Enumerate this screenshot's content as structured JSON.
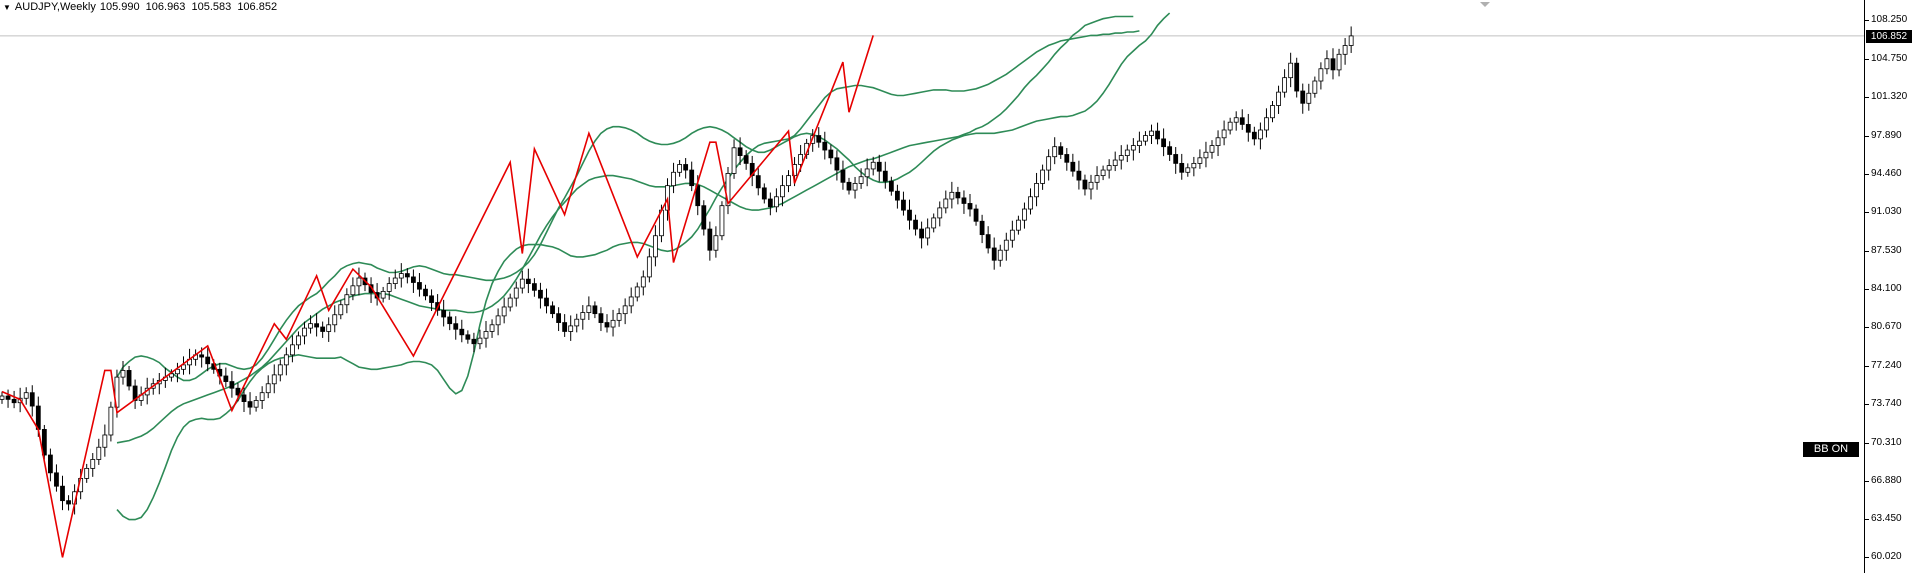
{
  "header": {
    "symbol": "AUDJPY,Weekly",
    "open": "105.990",
    "high": "106.963",
    "low": "105.583",
    "close": "106.852"
  },
  "current_price_label": "106.852",
  "indicator_badge": "BB ON",
  "chart_data": {
    "type": "candlestick",
    "title": "AUDJPY,Weekly",
    "ylim": [
      59.5,
      109.0
    ],
    "y_ticks": [
      "108.250",
      "104.750",
      "101.320",
      "97.890",
      "94.460",
      "91.030",
      "87.530",
      "84.100",
      "80.670",
      "77.240",
      "73.740",
      "70.310",
      "66.880",
      "63.450",
      "60.020"
    ],
    "last_price": 106.852,
    "grid": false,
    "colors": {
      "bull_candle": "#ffffff",
      "bear_candle": "#000000",
      "bollinger": "#2e8b57",
      "zigzag": "#e60000",
      "price_line": "#c0c0c0"
    },
    "close_series": [
      74.5,
      74.2,
      73.9,
      74.3,
      74.8,
      73.6,
      71.5,
      69.2,
      67.6,
      66.4,
      65.1,
      64.8,
      65.9,
      67.1,
      68.0,
      68.8,
      69.9,
      71.0,
      73.5,
      76.2,
      76.8,
      75.4,
      74.1,
      74.6,
      75.2,
      75.6,
      75.9,
      76.2,
      76.5,
      76.9,
      77.3,
      77.8,
      78.2,
      78.0,
      77.4,
      76.9,
      76.3,
      75.8,
      75.2,
      74.6,
      74.0,
      73.5,
      74.1,
      74.8,
      75.6,
      76.4,
      77.3,
      78.2,
      79.1,
      79.9,
      80.6,
      81.0,
      80.7,
      80.3,
      80.9,
      81.8,
      82.7,
      83.6,
      84.4,
      85.1,
      84.5,
      83.8,
      83.3,
      83.9,
      84.6,
      85.1,
      85.5,
      85.2,
      84.7,
      84.1,
      83.5,
      82.9,
      82.2,
      81.6,
      81.0,
      80.5,
      80.0,
      79.6,
      79.2,
      79.7,
      80.3,
      80.9,
      81.7,
      82.5,
      83.3,
      84.2,
      85.0,
      84.6,
      84.0,
      83.3,
      82.6,
      81.9,
      81.1,
      80.3,
      80.8,
      81.4,
      82.0,
      82.6,
      81.9,
      81.1,
      80.7,
      81.3,
      81.9,
      82.6,
      83.4,
      84.3,
      85.2,
      87.0,
      88.9,
      91.2,
      93.4,
      94.6,
      95.3,
      94.8,
      93.4,
      91.6,
      89.5,
      87.6,
      88.9,
      91.6,
      94.5,
      96.8,
      96.1,
      95.4,
      94.3,
      93.2,
      92.2,
      91.5,
      92.4,
      93.4,
      94.3,
      95.3,
      96.2,
      97.2,
      97.9,
      97.3,
      96.6,
      95.9,
      94.8,
      93.7,
      93.0,
      93.6,
      94.2,
      94.9,
      95.5,
      94.7,
      93.8,
      92.9,
      92.1,
      91.2,
      90.3,
      89.5,
      88.7,
      89.6,
      90.5,
      91.4,
      92.2,
      92.8,
      92.3,
      91.8,
      91.3,
      90.2,
      89.0,
      87.8,
      86.7,
      87.6,
      88.5,
      89.4,
      90.3,
      91.3,
      92.4,
      93.6,
      94.8,
      96.0,
      96.9,
      96.2,
      95.5,
      94.7,
      93.9,
      93.1,
      93.7,
      94.3,
      94.8,
      95.2,
      95.7,
      96.1,
      96.6,
      97.0,
      97.4,
      97.9,
      98.3,
      97.6,
      96.9,
      96.2,
      95.4,
      94.6,
      95.0,
      95.4,
      95.9,
      96.4,
      97.0,
      97.7,
      98.4,
      99.1,
      99.5,
      98.9,
      98.2,
      97.6,
      98.4,
      99.5,
      100.6,
      101.8,
      103.1,
      104.4,
      101.9,
      100.8,
      101.7,
      102.8,
      103.9,
      104.8,
      103.8,
      105.2,
      105.99,
      106.852
    ],
    "bollinger_upper": [
      null,
      null,
      null,
      null,
      null,
      null,
      null,
      null,
      null,
      null,
      null,
      null,
      null,
      null,
      null,
      null,
      null,
      null,
      null,
      76.2,
      77.1,
      77.6,
      78.0,
      78.1,
      78.0,
      77.8,
      77.5,
      77.0,
      76.6,
      76.2,
      75.9,
      75.9,
      76.1,
      76.5,
      76.9,
      77.2,
      77.4,
      77.4,
      77.2,
      77.0,
      76.9,
      77.0,
      77.3,
      77.9,
      78.7,
      79.6,
      80.5,
      81.3,
      82.0,
      82.6,
      83.0,
      83.4,
      83.7,
      84.2,
      84.8,
      85.3,
      85.9,
      86.2,
      86.4,
      86.5,
      86.4,
      86.3,
      86.0,
      85.8,
      85.6,
      85.6,
      85.7,
      85.9,
      86.1,
      86.2,
      86.1,
      85.9,
      85.7,
      85.5,
      85.4,
      85.4,
      85.3,
      85.2,
      85.1,
      85.0,
      84.9,
      84.9,
      85.0,
      85.1,
      85.3,
      85.6,
      86.0,
      86.5,
      87.2,
      88.1,
      89.2,
      90.3,
      91.4,
      92.3,
      93.3,
      94.3,
      95.4,
      96.5,
      97.4,
      98.1,
      98.5,
      98.7,
      98.7,
      98.6,
      98.4,
      98.1,
      97.7,
      97.4,
      97.2,
      97.1,
      97.1,
      97.2,
      97.4,
      97.7,
      98.1,
      98.4,
      98.6,
      98.7,
      98.6,
      98.4,
      98.1,
      97.7,
      97.3,
      96.9,
      96.6,
      96.4,
      96.4,
      96.6,
      96.9,
      97.2,
      97.5,
      97.8,
      98.0,
      98.1,
      98.0,
      97.8,
      97.5,
      97.1,
      96.7,
      96.2,
      95.7,
      95.1,
      94.6,
      94.2,
      93.9,
      93.7,
      93.7,
      93.8,
      94.0,
      94.3,
      94.6,
      95.0,
      95.5,
      96.0,
      96.5,
      96.9,
      97.2,
      97.5,
      97.7,
      97.9,
      98.0,
      98.1,
      98.1,
      98.1,
      98.1,
      98.2,
      98.3,
      98.4,
      98.6,
      98.8,
      99.0,
      99.2,
      99.3,
      99.4,
      99.5,
      99.6,
      99.6,
      99.7,
      99.9,
      100.1,
      100.5,
      101.0,
      101.7,
      102.5,
      103.4,
      104.3,
      105.0,
      105.5,
      106.0,
      106.4,
      107.0,
      107.8,
      108.4,
      108.9
    ],
    "bollinger_middle": [
      null,
      null,
      null,
      null,
      null,
      null,
      null,
      null,
      null,
      null,
      null,
      null,
      null,
      null,
      null,
      null,
      null,
      null,
      null,
      70.3,
      70.4,
      70.5,
      70.7,
      70.9,
      71.2,
      71.6,
      72.1,
      72.6,
      73.1,
      73.5,
      73.8,
      74.0,
      74.2,
      74.4,
      74.6,
      74.8,
      75.0,
      75.2,
      75.4,
      75.7,
      76.0,
      76.3,
      76.7,
      77.1,
      77.6,
      78.2,
      78.8,
      79.4,
      80.0,
      80.6,
      81.1,
      81.5,
      81.9,
      82.3,
      82.6,
      82.9,
      83.1,
      83.3,
      83.5,
      83.6,
      83.7,
      83.7,
      83.7,
      83.7,
      83.6,
      83.4,
      83.2,
      83.0,
      82.8,
      82.6,
      82.5,
      82.4,
      82.3,
      82.2,
      82.2,
      82.2,
      82.1,
      82.0,
      82.0,
      82.1,
      82.3,
      82.6,
      83.0,
      83.5,
      84.2,
      85.0,
      85.9,
      86.9,
      87.9,
      88.9,
      89.8,
      90.6,
      91.3,
      91.9,
      92.5,
      93.1,
      93.5,
      93.9,
      94.1,
      94.2,
      94.3,
      94.3,
      94.2,
      94.1,
      94.0,
      93.8,
      93.6,
      93.4,
      93.3,
      93.3,
      93.3,
      93.4,
      93.5,
      93.6,
      93.6,
      93.5,
      93.3,
      93.0,
      92.7,
      92.4,
      92.1,
      91.8,
      91.5,
      91.3,
      91.2,
      91.2,
      91.3,
      91.4,
      91.6,
      91.8,
      92.1,
      92.4,
      92.7,
      93.0,
      93.3,
      93.6,
      93.9,
      94.2,
      94.5,
      94.8,
      95.1,
      95.3,
      95.5,
      95.7,
      95.8,
      96.0,
      96.2,
      96.4,
      96.6,
      96.8,
      97.0,
      97.1,
      97.2,
      97.3,
      97.4,
      97.5,
      97.6,
      97.7,
      97.8,
      98.0,
      98.2,
      98.5,
      98.7,
      99.0,
      99.4,
      99.8,
      100.3,
      100.9,
      101.5,
      102.2,
      102.8,
      103.3,
      103.9,
      104.5,
      105.2,
      105.8,
      106.3,
      106.9,
      107.3,
      107.8,
      108.0,
      108.2,
      108.4,
      108.5,
      108.6,
      108.6,
      108.6,
      108.6
    ],
    "bollinger_lower": [
      null,
      null,
      null,
      null,
      null,
      null,
      null,
      null,
      null,
      null,
      null,
      null,
      null,
      null,
      null,
      null,
      null,
      null,
      null,
      64.3,
      63.7,
      63.4,
      63.4,
      63.6,
      64.3,
      65.4,
      66.7,
      68.1,
      69.6,
      70.8,
      71.7,
      72.2,
      72.4,
      72.5,
      72.4,
      72.4,
      72.5,
      72.9,
      73.4,
      74.1,
      75.0,
      75.8,
      76.5,
      77.0,
      77.4,
      77.7,
      77.9,
      78.0,
      78.1,
      78.2,
      78.1,
      78.0,
      77.9,
      77.9,
      77.9,
      77.9,
      78.0,
      77.7,
      77.4,
      77.1,
      77.0,
      76.9,
      76.9,
      77.0,
      77.1,
      77.2,
      77.3,
      77.5,
      77.6,
      77.6,
      77.5,
      77.3,
      76.8,
      76.0,
      75.2,
      74.7,
      75.0,
      76.3,
      78.4,
      80.9,
      83.0,
      84.6,
      85.7,
      86.6,
      87.2,
      87.7,
      88.0,
      88.1,
      88.1,
      88.1,
      88.0,
      87.9,
      87.7,
      87.4,
      87.1,
      87.0,
      87.0,
      87.1,
      87.2,
      87.4,
      87.6,
      87.9,
      88.1,
      88.2,
      88.3,
      88.3,
      88.2,
      88.0,
      87.8,
      87.6,
      87.5,
      87.6,
      87.9,
      88.3,
      88.8,
      89.5,
      90.4,
      91.3,
      92.3,
      93.2,
      94.0,
      94.8,
      95.5,
      96.1,
      96.6,
      97.0,
      97.2,
      97.3,
      97.4,
      97.5,
      97.6,
      97.9,
      98.5,
      99.2,
      99.9,
      100.6,
      101.3,
      101.8,
      102.1,
      102.2,
      102.3,
      102.4,
      102.4,
      102.3,
      102.2,
      102.0,
      101.8,
      101.6,
      101.5,
      101.5,
      101.6,
      101.7,
      101.8,
      101.9,
      102.0,
      102.0,
      102.0,
      101.9,
      101.9,
      101.9,
      102.0,
      102.1,
      102.3,
      102.5,
      102.8,
      103.1,
      103.4,
      103.8,
      104.2,
      104.6,
      105.0,
      105.4,
      105.7,
      106.0,
      106.2,
      106.4,
      106.5,
      106.6,
      106.7,
      106.8,
      106.9,
      106.9,
      107.0,
      107.0,
      107.1,
      107.1,
      107.2,
      107.2,
      107.3
    ],
    "zigzag": [
      [
        0,
        74.9
      ],
      [
        3,
        74.2
      ],
      [
        6,
        71.5
      ],
      [
        10,
        60.0
      ],
      [
        17,
        76.8
      ],
      [
        18,
        76.8
      ],
      [
        19,
        73.0
      ],
      [
        34,
        79.0
      ],
      [
        38,
        73.2
      ],
      [
        45,
        81.0
      ],
      [
        47,
        79.6
      ],
      [
        52,
        85.3
      ],
      [
        54,
        82.2
      ],
      [
        58,
        85.9
      ],
      [
        61,
        84.3
      ],
      [
        68,
        78.1
      ],
      [
        84,
        95.5
      ],
      [
        86,
        87.3
      ],
      [
        88,
        96.7
      ],
      [
        93,
        90.8
      ],
      [
        97,
        98.1
      ],
      [
        105,
        87.0
      ],
      [
        110,
        92.2
      ],
      [
        111,
        86.5
      ],
      [
        117,
        97.3
      ],
      [
        118,
        97.3
      ],
      [
        120,
        91.8
      ],
      [
        130,
        98.3
      ],
      [
        131,
        93.6
      ],
      [
        139,
        104.5
      ],
      [
        140,
        100.0
      ],
      [
        144,
        106.9
      ]
    ]
  }
}
